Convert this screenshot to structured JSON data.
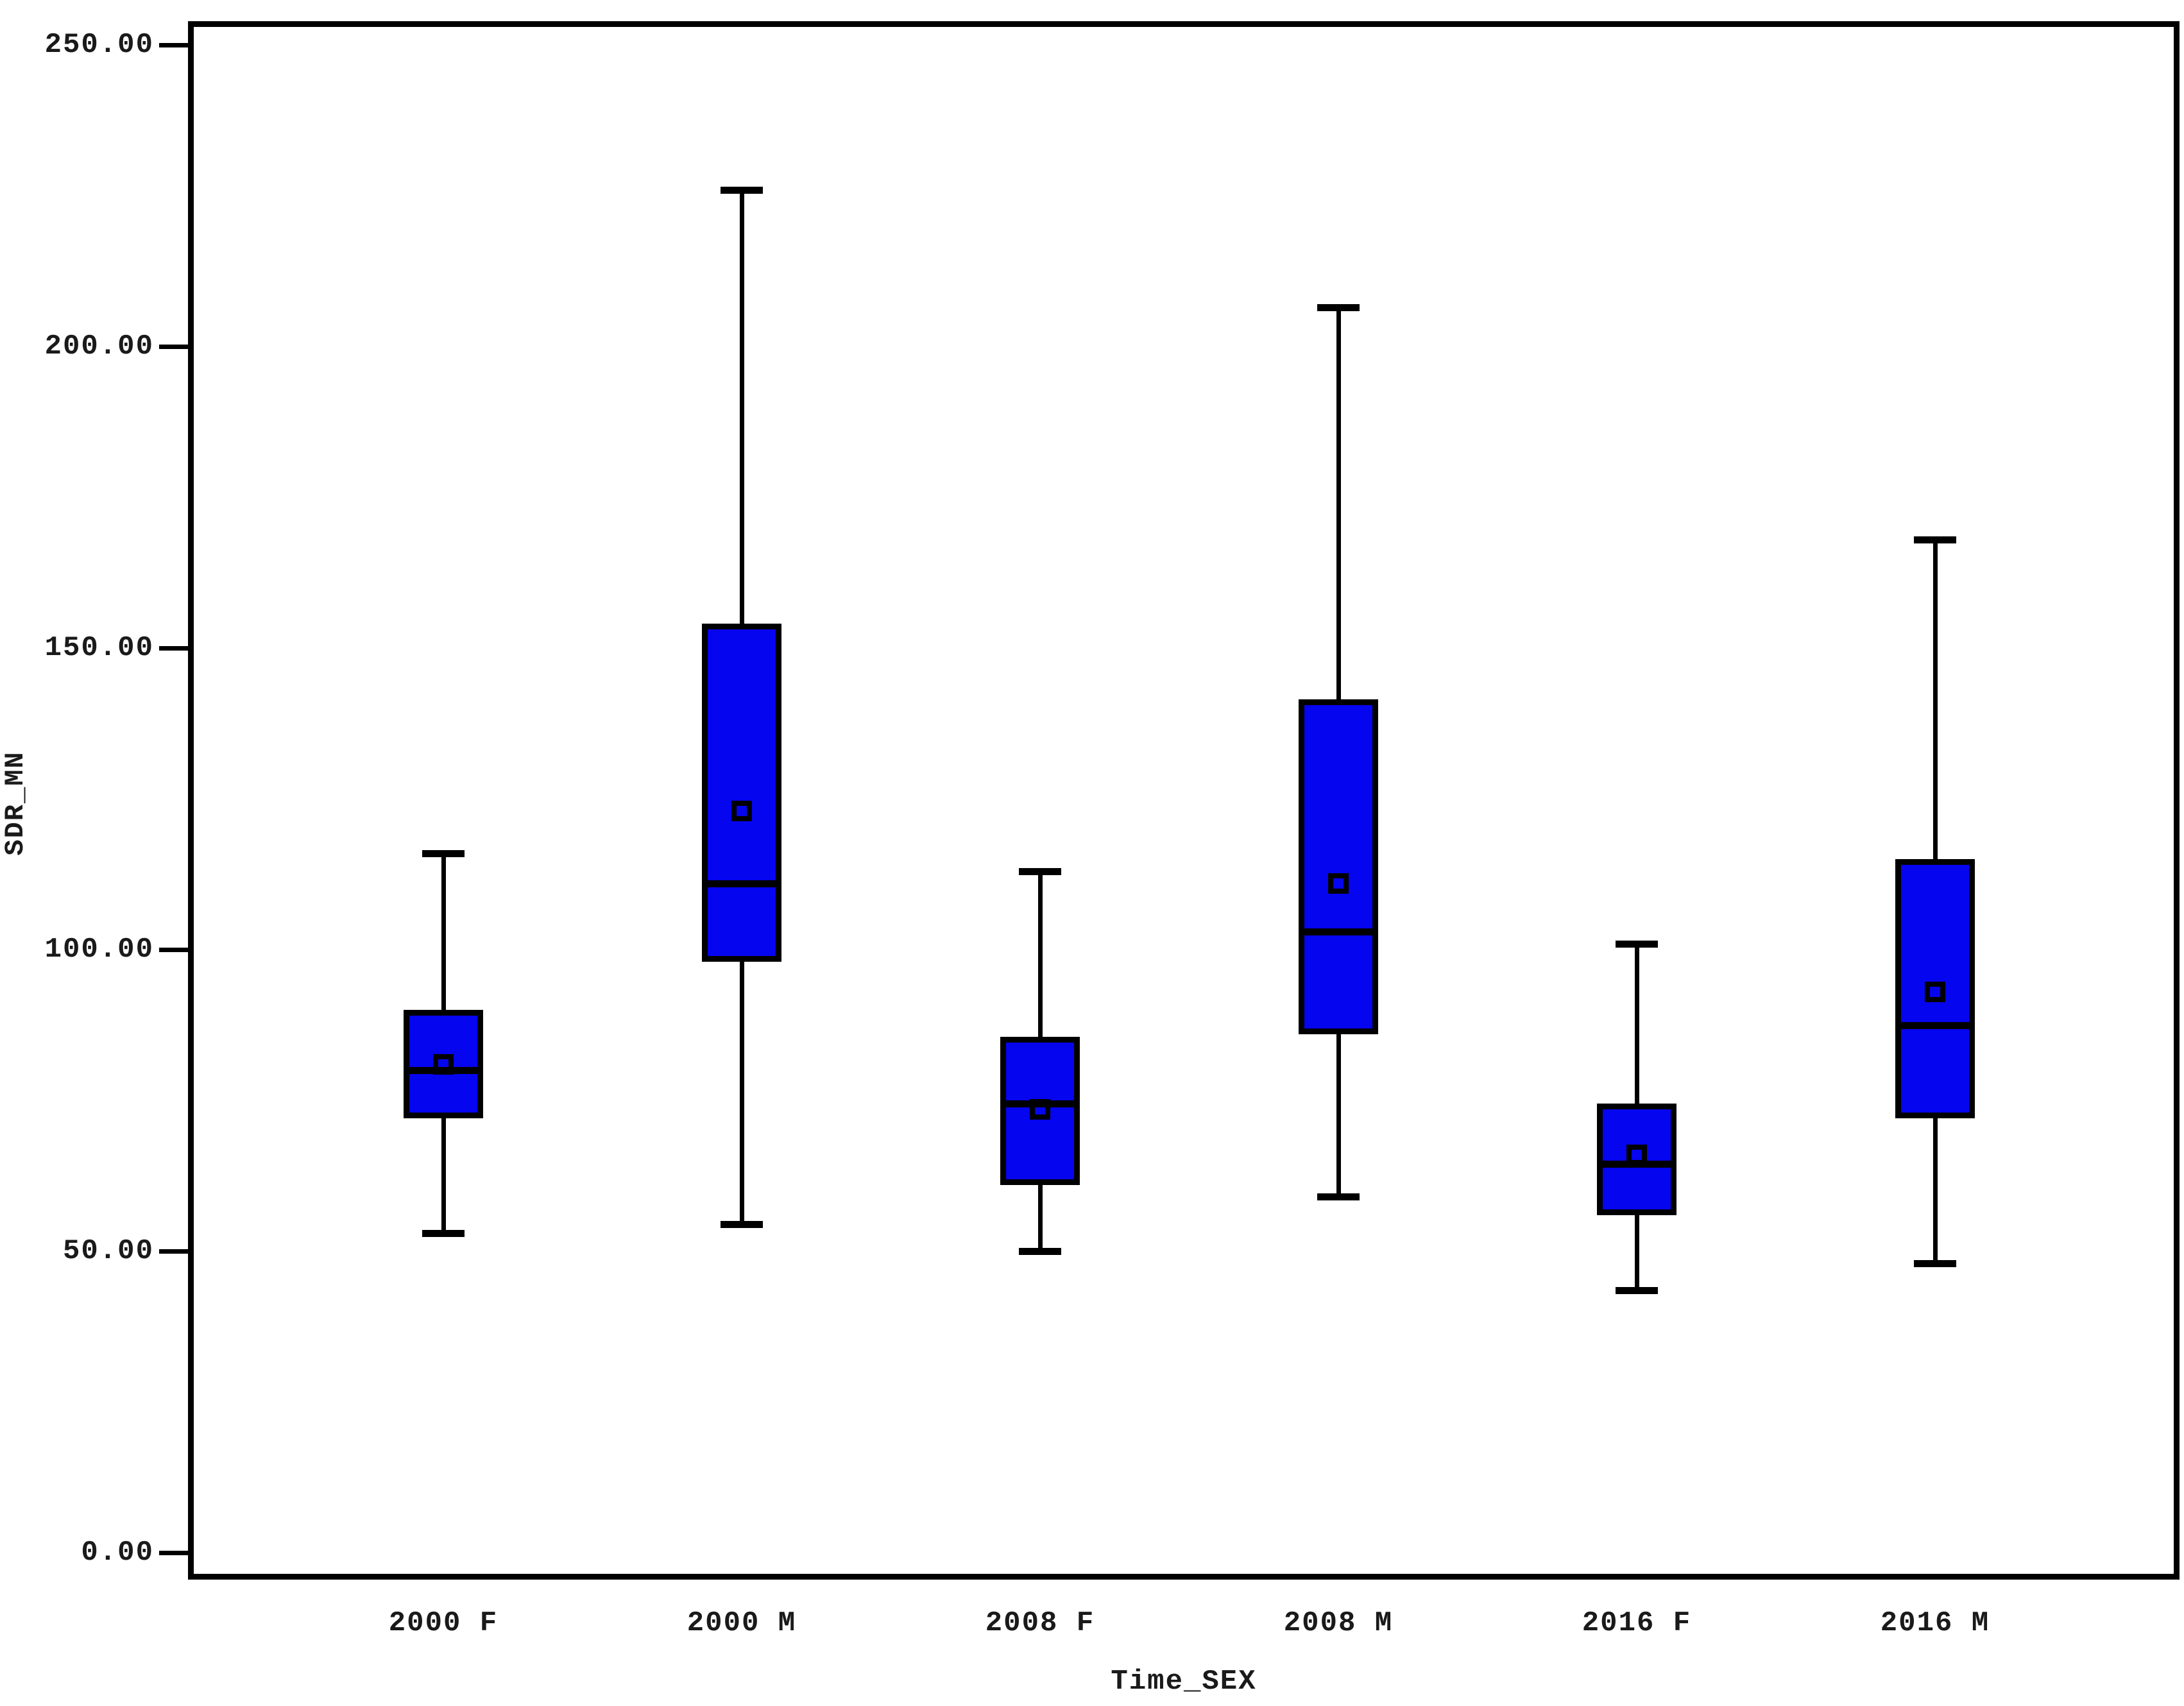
{
  "chart_data": {
    "type": "boxplot",
    "title": "",
    "xlabel": "Time_SEX",
    "ylabel": "SDR_MN",
    "ylim": [
      0,
      250
    ],
    "yticks": [
      0,
      50,
      100,
      150,
      200,
      250
    ],
    "ytick_labels": [
      "0.00",
      "50.00",
      "100.00",
      "150.00",
      "200.00",
      "250.00"
    ],
    "categories": [
      "2000 F",
      "2000 M",
      "2008 F",
      "2008 M",
      "2016 F",
      "2016 M"
    ],
    "boxes": [
      {
        "label": "2000 F",
        "whisker_low": 53,
        "q1": 72,
        "median": 80,
        "mean": 81,
        "q3": 90,
        "whisker_high": 116
      },
      {
        "label": "2000 M",
        "whisker_low": 54.5,
        "q1": 98,
        "median": 111,
        "mean": 123,
        "q3": 154,
        "whisker_high": 226
      },
      {
        "label": "2008 F",
        "whisker_low": 50,
        "q1": 61,
        "median": 74.5,
        "mean": 73.5,
        "q3": 85.5,
        "whisker_high": 113
      },
      {
        "label": "2008 M",
        "whisker_low": 59,
        "q1": 86,
        "median": 103,
        "mean": 111,
        "q3": 141.5,
        "whisker_high": 206.5
      },
      {
        "label": "2016 F",
        "whisker_low": 43.5,
        "q1": 56,
        "median": 64.5,
        "mean": 66,
        "q3": 74.5,
        "whisker_high": 101
      },
      {
        "label": "2016 M",
        "whisker_low": 48,
        "q1": 72,
        "median": 87.5,
        "mean": 93,
        "q3": 115,
        "whisker_high": 168
      }
    ],
    "box_fill_color": "#0505f0",
    "line_color": "#000000",
    "grid": false,
    "legend_position": "none"
  }
}
